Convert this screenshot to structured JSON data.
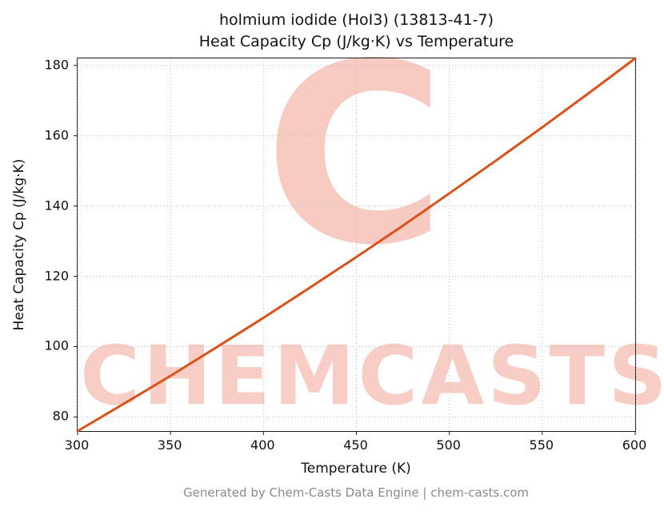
{
  "title_line1": "holmium iodide (HoI3) (13813-41-7)",
  "title_line2": "Heat Capacity Cp (J/kg·K) vs Temperature",
  "footer": "Generated by Chem-Casts Data Engine | chem-casts.com",
  "watermark": {
    "letter": "C",
    "text": "CHEMCASTS",
    "color": "#e55a42"
  },
  "chart_data": {
    "type": "line",
    "title": "holmium iodide (HoI3) (13813-41-7) — Heat Capacity Cp (J/kg·K) vs Temperature",
    "xlabel": "Temperature (K)",
    "ylabel": "Heat Capacity Cp (J/kg·K)",
    "xlim": [
      300,
      600
    ],
    "ylim": [
      76,
      182
    ],
    "xticks": [
      300,
      350,
      400,
      450,
      500,
      550,
      600
    ],
    "yticks": [
      80,
      100,
      120,
      140,
      160,
      180
    ],
    "grid": true,
    "grid_color": "#bbbbbb",
    "line_color": "#d95319",
    "line_width": 3,
    "series": [
      {
        "name": "Cp",
        "x": [
          300,
          325,
          350,
          375,
          400,
          425,
          450,
          475,
          500,
          525,
          550,
          575,
          600
        ],
        "y": [
          76.0,
          83.8,
          91.7,
          99.9,
          108.2,
          116.8,
          125.5,
          134.4,
          143.6,
          152.9,
          162.4,
          172.1,
          182.0
        ]
      }
    ]
  }
}
